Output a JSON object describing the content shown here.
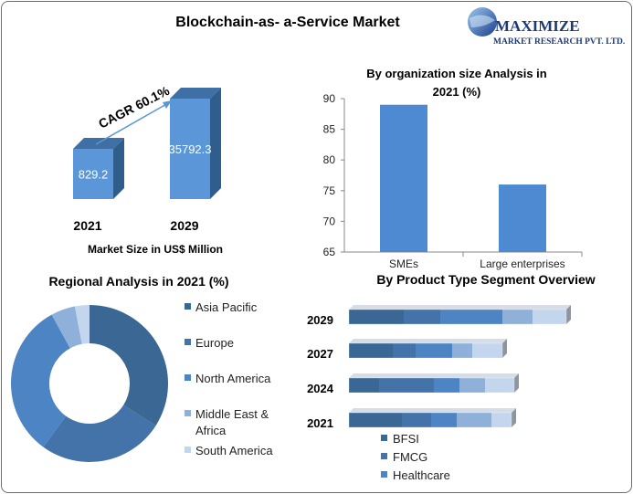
{
  "main_title": "Blockchain-as- a-Service Market",
  "logo": {
    "name": "MAXIMIZE",
    "sub": "MARKET RESEARCH PVT. LTD."
  },
  "market_size": {
    "cagr_label": "CAGR 60.1%",
    "caption": "Market Size in US$ Million",
    "bars": [
      {
        "year": "2021",
        "value": 829.2,
        "label": "829.2"
      },
      {
        "year": "2029",
        "value": 35792.3,
        "label": "35792.3"
      }
    ]
  },
  "chart_data": [
    {
      "type": "bar",
      "title": "By organization size Analysis in 2021 (%)",
      "title_lines": [
        "By organization size Analysis in",
        "2021 (%)"
      ],
      "categories": [
        "SMEs",
        "Large enterprises"
      ],
      "values": [
        89,
        76
      ],
      "ylim": [
        65,
        90
      ],
      "yticks": [
        65,
        70,
        75,
        80,
        85,
        90
      ],
      "grid": false
    },
    {
      "type": "pie",
      "title": "Regional Analysis in 2021 (%)",
      "labels": [
        "Asia Pacific",
        "Europe",
        "North America",
        "Middle East & Africa",
        "South America"
      ],
      "legend_lines": [
        [
          "Asia Pacific"
        ],
        [
          "Europe"
        ],
        [
          "North America"
        ],
        [
          "Middle East &",
          "Africa"
        ],
        [
          "South America"
        ]
      ],
      "values": [
        34,
        26,
        32,
        5,
        3
      ],
      "colors": [
        "#3a6793",
        "#4373a9",
        "#4d84c4",
        "#8eb0d9",
        "#c4d6ee"
      ],
      "legend": "right"
    },
    {
      "type": "bar",
      "orientation": "horizontal-stacked",
      "title": "By Product Type Segment Overview",
      "categories": [
        "2029",
        "2027",
        "2024",
        "2021"
      ],
      "series": [
        {
          "name": "BFSI",
          "values": [
            60,
            48,
            33,
            58
          ],
          "color": "#3a6793"
        },
        {
          "name": "FMCG",
          "values": [
            40,
            25,
            60,
            32
          ]
        },
        {
          "name": "Healthcare",
          "values": [
            68,
            40,
            28,
            28
          ],
          "color": "#4d84c4"
        },
        {
          "values": [
            33,
            22,
            28,
            38
          ],
          "color": "#8eb0d9"
        },
        {
          "values": [
            37,
            33,
            32,
            22
          ],
          "color": "#c4d6ee"
        }
      ],
      "series_colors": [
        "#3a6793",
        "#4373a9",
        "#4d84c4",
        "#8eb0d9",
        "#c4d6ee"
      ],
      "legend": "bottom"
    }
  ]
}
